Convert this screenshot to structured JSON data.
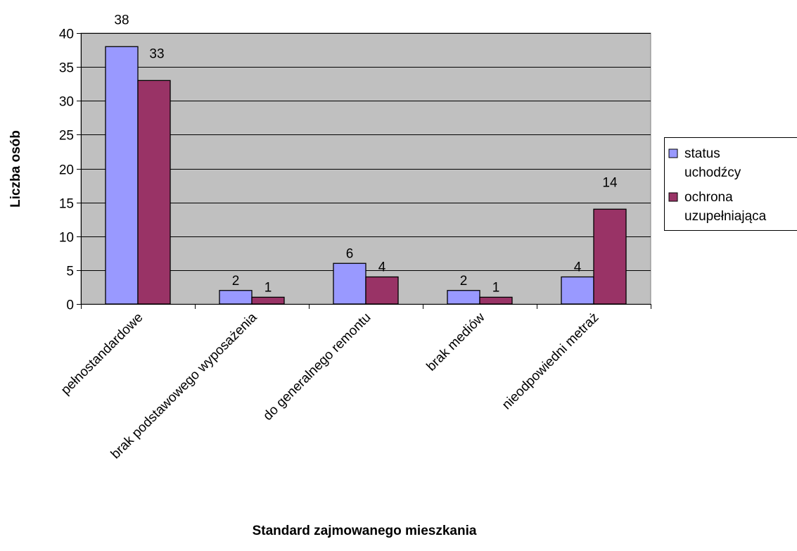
{
  "chart_data": {
    "type": "bar",
    "xlabel": "Standard zajmowanego mieszkania",
    "ylabel": "Liczba osób",
    "categories": [
      "pełnostandardowe",
      "brak podstawowego wyposażenia",
      "do generalnego remontu",
      "brak mediów",
      "nieodpowiedni metraż"
    ],
    "series": [
      {
        "name": "status uchodźcy",
        "legend_lines": [
          "status",
          "uchodźcy"
        ],
        "values": [
          38,
          2,
          6,
          2,
          4
        ],
        "color": "#9999ff"
      },
      {
        "name": "ochrona uzupełniająca",
        "legend_lines": [
          "ochrona",
          "uzupełniająca"
        ],
        "values": [
          33,
          1,
          4,
          1,
          14
        ],
        "color": "#993366"
      }
    ],
    "ylim": [
      0,
      40
    ],
    "yticks": [
      0,
      5,
      10,
      15,
      20,
      25,
      30,
      35,
      40
    ],
    "grid": true,
    "plot_background": "#c0c0c0",
    "legend_position": "right"
  }
}
